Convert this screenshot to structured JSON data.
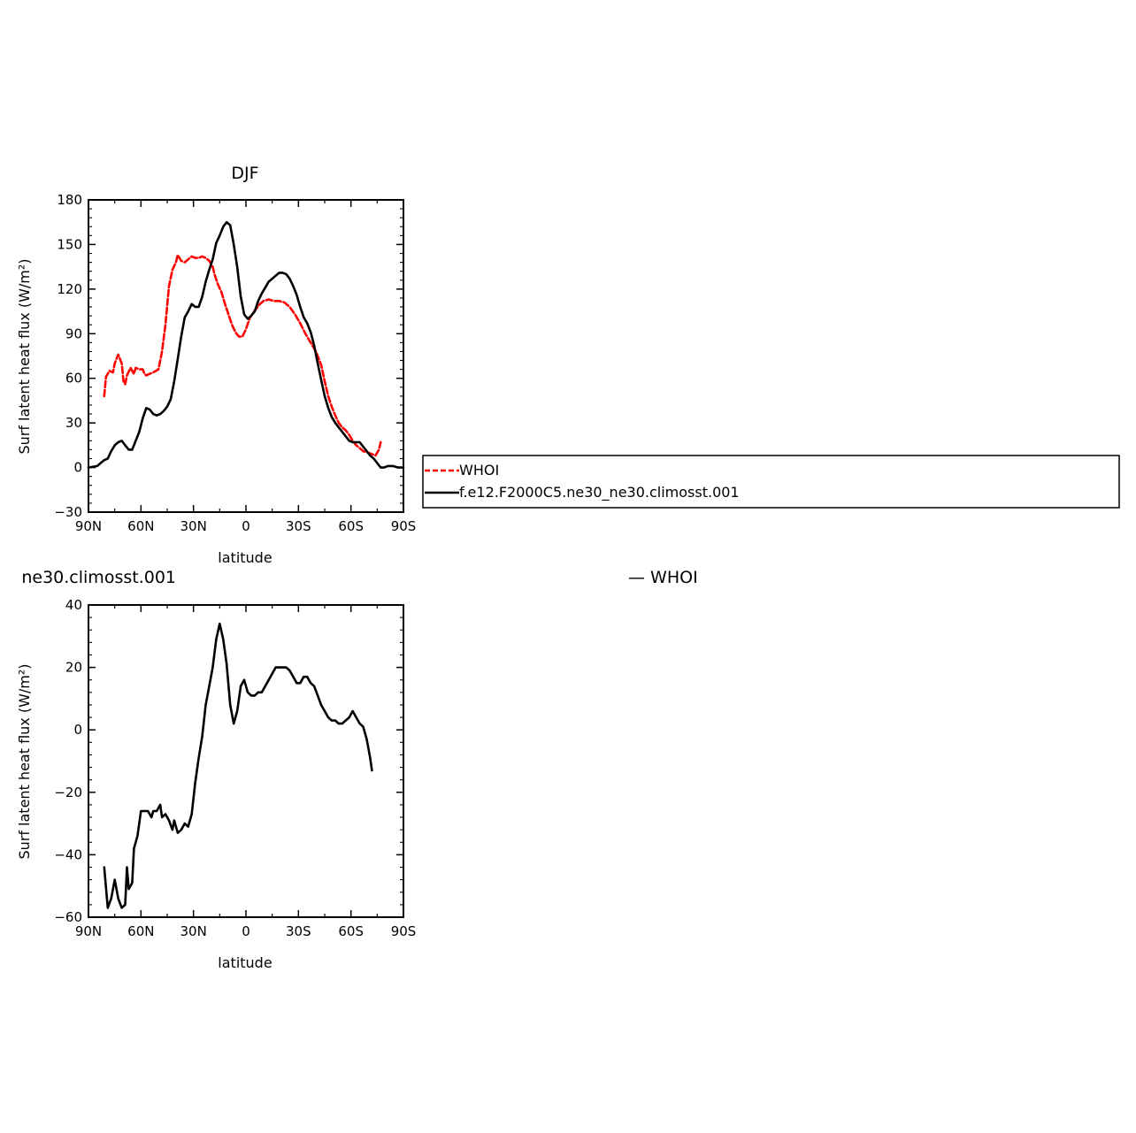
{
  "chart_data": [
    {
      "type": "line",
      "title": "DJF",
      "xlabel": "latitude",
      "ylabel": "Surf latent heat flux (W/m²)",
      "xlim": [
        90,
        -90
      ],
      "ylim": [
        -30,
        180
      ],
      "x_ticks": [
        {
          "value": 90,
          "label": "90N"
        },
        {
          "value": 60,
          "label": "60N"
        },
        {
          "value": 30,
          "label": "30N"
        },
        {
          "value": 0,
          "label": "0"
        },
        {
          "value": -30,
          "label": "30S"
        },
        {
          "value": -60,
          "label": "60S"
        },
        {
          "value": -90,
          "label": "90S"
        }
      ],
      "y_ticks": [
        {
          "value": 180,
          "label": "180"
        },
        {
          "value": 150,
          "label": "150"
        },
        {
          "value": 120,
          "label": "120"
        },
        {
          "value": 90,
          "label": "90"
        },
        {
          "value": 60,
          "label": "60"
        },
        {
          "value": 30,
          "label": "30"
        },
        {
          "value": 0,
          "label": "0"
        },
        {
          "value": -30,
          "label": "−30"
        }
      ],
      "legend": {
        "placement": "right",
        "entries": [
          "WHOI",
          "f.e12.F2000C5.ne30_ne30.climosst.001"
        ]
      },
      "series": [
        {
          "name": "WHOI",
          "color": "#ff0000",
          "dash": true,
          "points": [
            [
              81,
              48
            ],
            [
              80,
              61
            ],
            [
              78,
              65
            ],
            [
              76,
              64
            ],
            [
              75,
              70
            ],
            [
              73,
              76
            ],
            [
              71,
              70
            ],
            [
              70,
              58
            ],
            [
              69,
              56
            ],
            [
              68,
              62
            ],
            [
              66,
              67
            ],
            [
              64,
              63
            ],
            [
              63,
              67
            ],
            [
              61,
              66
            ],
            [
              59,
              66
            ],
            [
              58,
              63
            ],
            [
              57,
              62
            ],
            [
              55,
              63
            ],
            [
              53,
              64
            ],
            [
              50,
              66
            ],
            [
              48,
              78
            ],
            [
              46,
              96
            ],
            [
              44,
              122
            ],
            [
              42,
              133
            ],
            [
              40,
              138
            ],
            [
              39,
              143
            ],
            [
              37,
              139
            ],
            [
              35,
              138
            ],
            [
              33,
              140
            ],
            [
              31,
              142
            ],
            [
              29,
              141
            ],
            [
              27,
              141
            ],
            [
              25,
              142
            ],
            [
              23,
              141
            ],
            [
              21,
              139
            ],
            [
              19,
              135
            ],
            [
              18,
              130
            ],
            [
              16,
              123
            ],
            [
              14,
              118
            ],
            [
              12,
              110
            ],
            [
              10,
              103
            ],
            [
              8,
              96
            ],
            [
              6,
              91
            ],
            [
              4,
              88
            ],
            [
              2,
              88
            ],
            [
              0,
              93
            ],
            [
              -2,
              100
            ],
            [
              -4,
              104
            ],
            [
              -6,
              107
            ],
            [
              -8,
              110
            ],
            [
              -10,
              112
            ],
            [
              -13,
              113
            ],
            [
              -16,
              112
            ],
            [
              -19,
              112
            ],
            [
              -22,
              111
            ],
            [
              -25,
              108
            ],
            [
              -28,
              103
            ],
            [
              -31,
              97
            ],
            [
              -34,
              90
            ],
            [
              -37,
              84
            ],
            [
              -40,
              78
            ],
            [
              -43,
              69
            ],
            [
              -45,
              58
            ],
            [
              -47,
              48
            ],
            [
              -49,
              41
            ],
            [
              -51,
              35
            ],
            [
              -53,
              30
            ],
            [
              -55,
              27
            ],
            [
              -57,
              25
            ],
            [
              -59,
              22
            ],
            [
              -61,
              18
            ],
            [
              -63,
              15
            ],
            [
              -65,
              13
            ],
            [
              -67,
              11
            ],
            [
              -70,
              10
            ],
            [
              -72,
              9
            ],
            [
              -74,
              8
            ],
            [
              -76,
              12
            ],
            [
              -77,
              17
            ]
          ]
        },
        {
          "name": "f.e12.F2000C5.ne30_ne30.climosst.001",
          "color": "#000000",
          "dash": false,
          "points": [
            [
              90,
              0
            ],
            [
              85,
              1
            ],
            [
              83,
              3
            ],
            [
              81,
              5
            ],
            [
              79,
              6
            ],
            [
              77,
              11
            ],
            [
              75,
              15
            ],
            [
              73,
              17
            ],
            [
              71,
              18
            ],
            [
              69,
              15
            ],
            [
              67,
              12
            ],
            [
              65,
              12
            ],
            [
              63,
              18
            ],
            [
              61,
              24
            ],
            [
              59,
              33
            ],
            [
              57,
              40
            ],
            [
              55,
              39
            ],
            [
              53,
              36
            ],
            [
              51,
              35
            ],
            [
              49,
              36
            ],
            [
              47,
              38
            ],
            [
              45,
              41
            ],
            [
              43,
              46
            ],
            [
              41,
              58
            ],
            [
              39,
              73
            ],
            [
              37,
              88
            ],
            [
              35,
              101
            ],
            [
              33,
              105
            ],
            [
              31,
              110
            ],
            [
              29,
              108
            ],
            [
              27,
              108
            ],
            [
              25,
              115
            ],
            [
              23,
              125
            ],
            [
              21,
              133
            ],
            [
              19,
              140
            ],
            [
              17,
              151
            ],
            [
              15,
              156
            ],
            [
              13,
              162
            ],
            [
              11,
              165
            ],
            [
              9,
              163
            ],
            [
              7,
              150
            ],
            [
              5,
              135
            ],
            [
              3,
              115
            ],
            [
              1,
              103
            ],
            [
              -1,
              100
            ],
            [
              -3,
              102
            ],
            [
              -5,
              105
            ],
            [
              -7,
              112
            ],
            [
              -9,
              117
            ],
            [
              -11,
              121
            ],
            [
              -13,
              125
            ],
            [
              -15,
              127
            ],
            [
              -17,
              129
            ],
            [
              -19,
              131
            ],
            [
              -21,
              131
            ],
            [
              -23,
              130
            ],
            [
              -25,
              127
            ],
            [
              -27,
              122
            ],
            [
              -29,
              116
            ],
            [
              -31,
              108
            ],
            [
              -33,
              101
            ],
            [
              -35,
              97
            ],
            [
              -37,
              91
            ],
            [
              -39,
              82
            ],
            [
              -41,
              70
            ],
            [
              -43,
              59
            ],
            [
              -45,
              48
            ],
            [
              -47,
              40
            ],
            [
              -49,
              34
            ],
            [
              -51,
              30
            ],
            [
              -53,
              27
            ],
            [
              -55,
              24
            ],
            [
              -57,
              21
            ],
            [
              -59,
              18
            ],
            [
              -61,
              17
            ],
            [
              -63,
              17
            ],
            [
              -65,
              17
            ],
            [
              -67,
              14
            ],
            [
              -69,
              11
            ],
            [
              -71,
              8
            ],
            [
              -73,
              6
            ],
            [
              -75,
              3
            ],
            [
              -77,
              0
            ],
            [
              -79,
              0
            ],
            [
              -81,
              1
            ],
            [
              -84,
              1
            ],
            [
              -87,
              0
            ],
            [
              -90,
              0
            ]
          ]
        }
      ]
    },
    {
      "type": "line",
      "title_left": "ne30.climosst.001",
      "title_right": "— WHOI",
      "xlabel": "latitude",
      "ylabel": "Surf latent heat flux (W/m²)",
      "xlim": [
        90,
        -90
      ],
      "ylim": [
        -60,
        40
      ],
      "x_ticks": [
        {
          "value": 90,
          "label": "90N"
        },
        {
          "value": 60,
          "label": "60N"
        },
        {
          "value": 30,
          "label": "30N"
        },
        {
          "value": 0,
          "label": "0"
        },
        {
          "value": -30,
          "label": "30S"
        },
        {
          "value": -60,
          "label": "60S"
        },
        {
          "value": -90,
          "label": "90S"
        }
      ],
      "y_ticks": [
        {
          "value": 40,
          "label": "40"
        },
        {
          "value": 20,
          "label": "20"
        },
        {
          "value": 0,
          "label": "0"
        },
        {
          "value": -20,
          "label": "−20"
        },
        {
          "value": -40,
          "label": "−40"
        },
        {
          "value": -60,
          "label": "−60"
        }
      ],
      "series": [
        {
          "color": "#000000",
          "dash": false,
          "points": [
            [
              81,
              -44
            ],
            [
              79,
              -57
            ],
            [
              77,
              -54
            ],
            [
              75,
              -48
            ],
            [
              73,
              -54
            ],
            [
              71,
              -57
            ],
            [
              69,
              -56
            ],
            [
              68,
              -44
            ],
            [
              67,
              -51
            ],
            [
              65,
              -49
            ],
            [
              64,
              -38
            ],
            [
              62,
              -34
            ],
            [
              60,
              -26
            ],
            [
              58,
              -26
            ],
            [
              56,
              -26
            ],
            [
              54,
              -28
            ],
            [
              53,
              -26
            ],
            [
              51,
              -26
            ],
            [
              49,
              -24
            ],
            [
              48,
              -28
            ],
            [
              46,
              -27
            ],
            [
              44,
              -29
            ],
            [
              42,
              -32
            ],
            [
              41,
              -29
            ],
            [
              39,
              -33
            ],
            [
              37,
              -32
            ],
            [
              35,
              -30
            ],
            [
              33,
              -31
            ],
            [
              31,
              -27
            ],
            [
              29,
              -17
            ],
            [
              27,
              -9
            ],
            [
              25,
              -2
            ],
            [
              23,
              8
            ],
            [
              21,
              14
            ],
            [
              19,
              20
            ],
            [
              17,
              29
            ],
            [
              15,
              34
            ],
            [
              13,
              29
            ],
            [
              11,
              21
            ],
            [
              9,
              8
            ],
            [
              7,
              2
            ],
            [
              5,
              6
            ],
            [
              3,
              14
            ],
            [
              1,
              16
            ],
            [
              -1,
              12
            ],
            [
              -3,
              11
            ],
            [
              -5,
              11
            ],
            [
              -7,
              12
            ],
            [
              -9,
              12
            ],
            [
              -11,
              14
            ],
            [
              -14,
              17
            ],
            [
              -17,
              20
            ],
            [
              -20,
              20
            ],
            [
              -23,
              20
            ],
            [
              -25,
              19
            ],
            [
              -27,
              17
            ],
            [
              -29,
              15
            ],
            [
              -31,
              15
            ],
            [
              -33,
              17
            ],
            [
              -35,
              17
            ],
            [
              -37,
              15
            ],
            [
              -39,
              14
            ],
            [
              -41,
              11
            ],
            [
              -43,
              8
            ],
            [
              -45,
              6
            ],
            [
              -47,
              4
            ],
            [
              -49,
              3
            ],
            [
              -51,
              3
            ],
            [
              -53,
              2
            ],
            [
              -55,
              2
            ],
            [
              -57,
              3
            ],
            [
              -59,
              4
            ],
            [
              -61,
              6
            ],
            [
              -63,
              4
            ],
            [
              -65,
              2
            ],
            [
              -67,
              1
            ],
            [
              -69,
              -3
            ],
            [
              -71,
              -9
            ],
            [
              -72,
              -13
            ]
          ]
        }
      ]
    }
  ]
}
